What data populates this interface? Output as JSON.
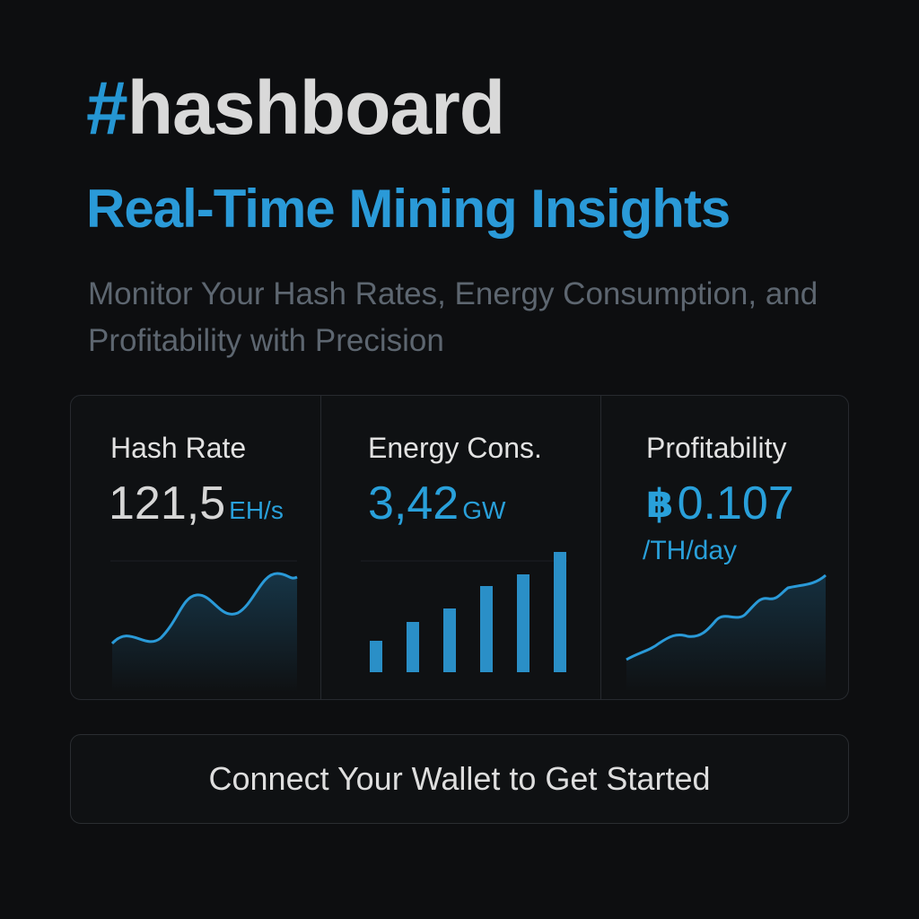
{
  "brand": {
    "hash_symbol": "#",
    "name": "hashboard"
  },
  "headline": "Real-Time Mining Insights",
  "subtitle": "Monitor Your Hash Rates, Energy Consumption, and Profitability with Precision",
  "colors": {
    "background": "#0d0e10",
    "accent": "#2a9ad8",
    "text": "#e2e2e2",
    "muted": "#5d6670",
    "border": "#272a2f"
  },
  "cards": [
    {
      "label": "Hash Rate",
      "value": "121,5",
      "unit": "EH/s",
      "chart": "area-line"
    },
    {
      "label": "Energy Cons.",
      "value": "3,42",
      "unit": "GW",
      "chart": "bar",
      "bar_levels": [
        0.26,
        0.42,
        0.53,
        0.72,
        0.81,
        1.0
      ]
    },
    {
      "label": "Profitability",
      "currency_symbol": "฿",
      "value": "0.107",
      "unit": "/TH/day",
      "chart": "area-line"
    }
  ],
  "cta": {
    "label": "Connect Your Wallet to Get Started"
  }
}
